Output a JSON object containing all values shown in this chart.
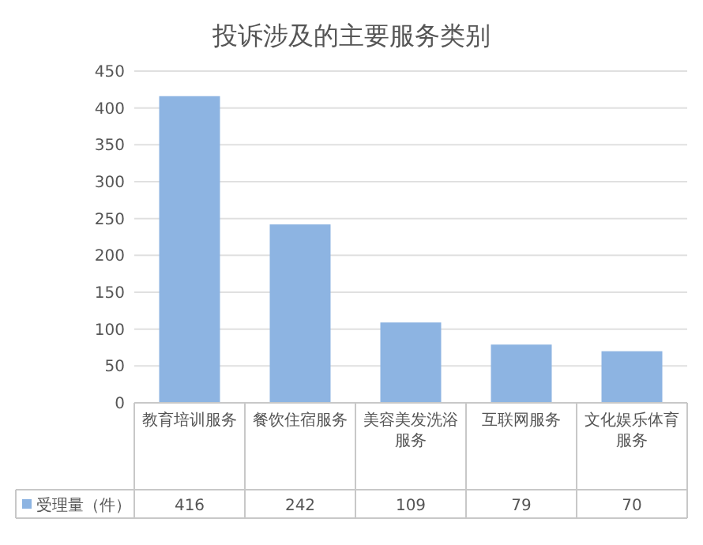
{
  "chart_data": {
    "type": "bar",
    "title": "投诉涉及的主要服务类别",
    "categories": [
      "教育培训服务",
      "餐饮住宿服务",
      "美容美发洗浴服务",
      "互联网服务",
      "文化娱乐体育服务"
    ],
    "series": [
      {
        "name": "受理量（件）",
        "color": "#8db4e2",
        "values": [
          416,
          242,
          109,
          79,
          70
        ]
      }
    ],
    "ylim": [
      0,
      450
    ],
    "yticks": [
      0,
      50,
      100,
      150,
      200,
      250,
      300,
      350,
      400,
      450
    ],
    "grid": "y",
    "legend": "bottom",
    "data_labels": true
  }
}
